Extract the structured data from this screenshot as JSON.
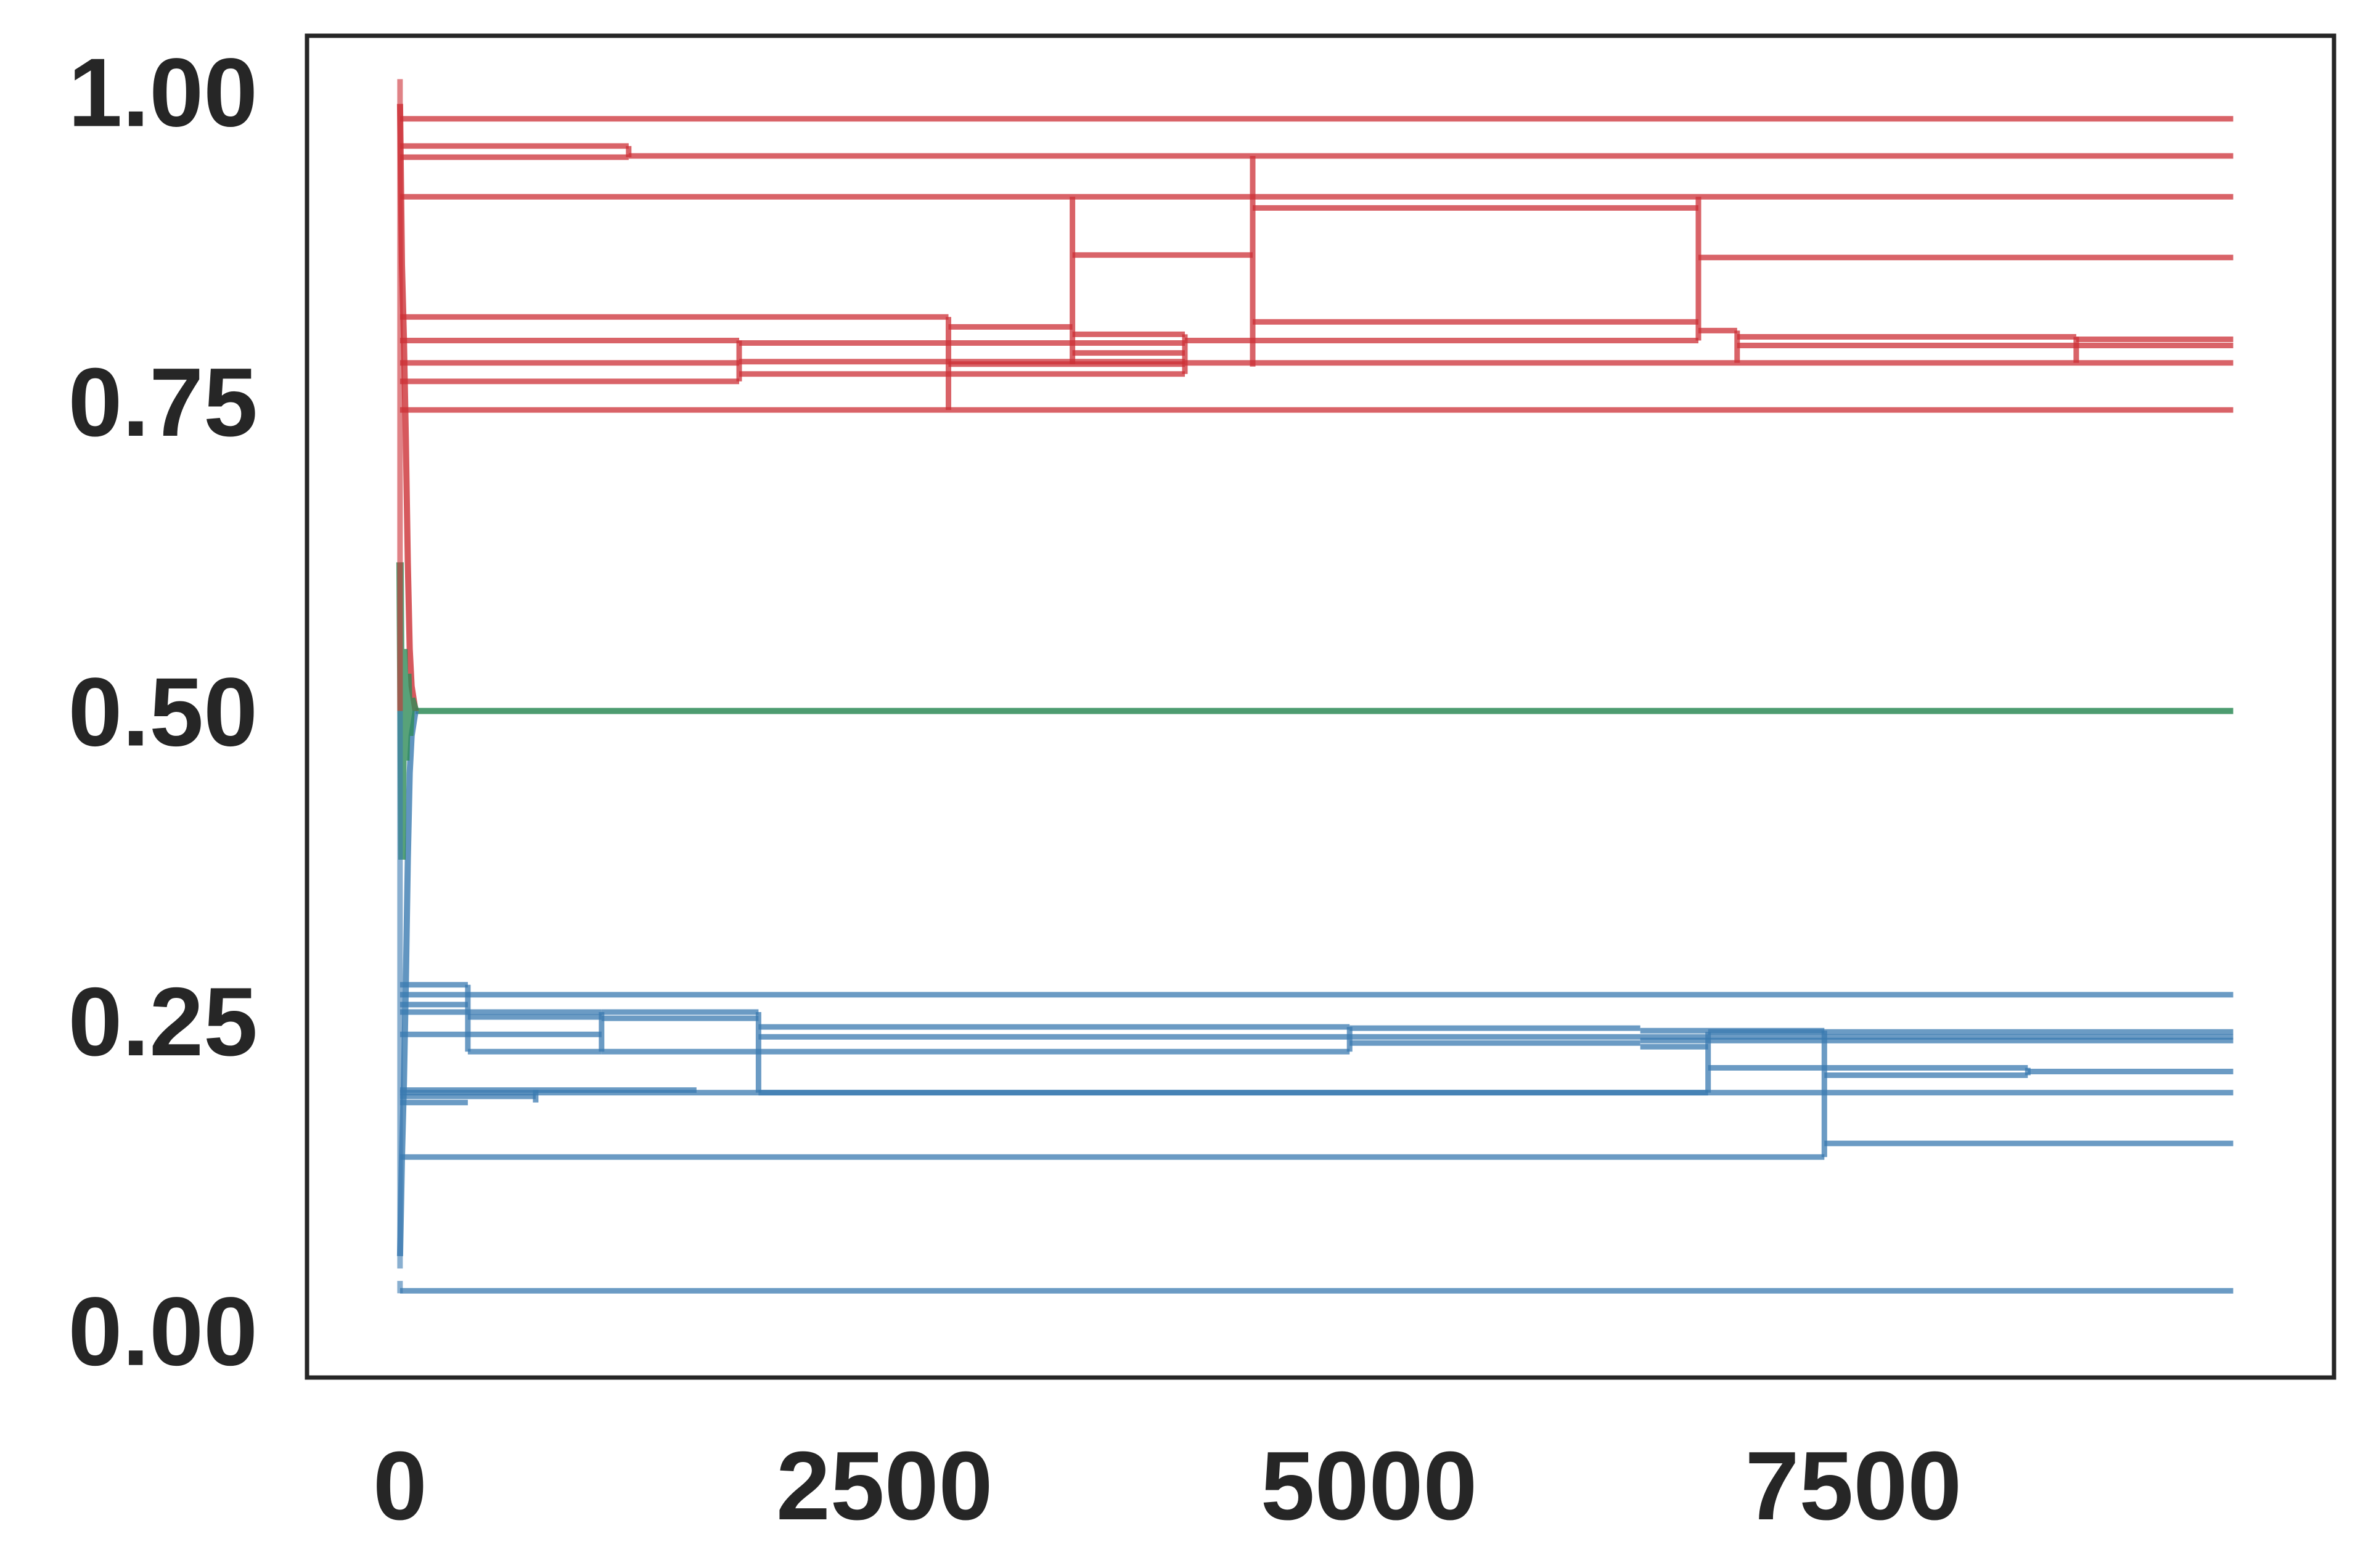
{
  "chart_data": {
    "type": "line",
    "title": "",
    "xlabel": "",
    "ylabel": "",
    "xlim": [
      -480,
      9980
    ],
    "ylim": [
      -0.038,
      1.045
    ],
    "x_ticks": [
      0,
      2500,
      5000,
      7500
    ],
    "x_tick_labels": [
      "0",
      "2500",
      "5000",
      "7500"
    ],
    "y_ticks": [
      0.0,
      0.25,
      0.5,
      0.75,
      1.0
    ],
    "y_tick_labels": [
      "0.00",
      "0.25",
      "0.50",
      "0.75",
      "1.00"
    ],
    "grid": false,
    "legend": "none",
    "colors": {
      "red": "#cc2f35",
      "blue": "#3a7ab0",
      "green": "#2e8b57",
      "frame": "#262626"
    },
    "series_groups": [
      {
        "color": "red",
        "segments": [
          {
            "x": [
              0,
              9460
            ],
            "y": [
              0.978,
              0.978
            ]
          },
          {
            "x": [
              0,
              1180
            ],
            "y": [
              0.956,
              0.956
            ]
          },
          {
            "x": [
              0,
              1180
            ],
            "y": [
              0.947,
              0.947
            ]
          },
          {
            "x": [
              1180,
              9460
            ],
            "y": [
              0.948,
              0.948
            ]
          },
          {
            "x": [
              0,
              9460
            ],
            "y": [
              0.915,
              0.915
            ]
          },
          {
            "x": [
              0,
              2830
            ],
            "y": [
              0.818,
              0.818
            ]
          },
          {
            "x": [
              2830,
              3470
            ],
            "y": [
              0.81,
              0.81
            ]
          },
          {
            "x": [
              0,
              1750
            ],
            "y": [
              0.799,
              0.799
            ]
          },
          {
            "x": [
              1750,
              4050
            ],
            "y": [
              0.797,
              0.797
            ]
          },
          {
            "x": [
              3470,
              4050
            ],
            "y": [
              0.804,
              0.804
            ]
          },
          {
            "x": [
              4050,
              6700
            ],
            "y": [
              0.799,
              0.799
            ]
          },
          {
            "x": [
              6700,
              6900
            ],
            "y": [
              0.807,
              0.807
            ]
          },
          {
            "x": [
              6900,
              8650
            ],
            "y": [
              0.802,
              0.802
            ]
          },
          {
            "x": [
              8650,
              9460
            ],
            "y": [
              0.8,
              0.8
            ]
          },
          {
            "x": [
              6900,
              9460
            ],
            "y": [
              0.795,
              0.795
            ]
          },
          {
            "x": [
              3470,
              4050
            ],
            "y": [
              0.789,
              0.789
            ]
          },
          {
            "x": [
              0,
              1750
            ],
            "y": [
              0.781,
              0.781
            ]
          },
          {
            "x": [
              1750,
              4050
            ],
            "y": [
              0.782,
              0.782
            ]
          },
          {
            "x": [
              4050,
              9460
            ],
            "y": [
              0.781,
              0.781
            ]
          },
          {
            "x": [
              2830,
              4050
            ],
            "y": [
              0.78,
              0.78
            ]
          },
          {
            "x": [
              0,
              1750
            ],
            "y": [
              0.766,
              0.766
            ]
          },
          {
            "x": [
              1750,
              4050
            ],
            "y": [
              0.772,
              0.772
            ]
          },
          {
            "x": [
              0,
              2830
            ],
            "y": [
              0.743,
              0.743
            ]
          },
          {
            "x": [
              2830,
              9460
            ],
            "y": [
              0.743,
              0.743
            ]
          },
          {
            "x": [
              3470,
              4400
            ],
            "y": [
              0.868,
              0.868
            ]
          },
          {
            "x": [
              4400,
              6700
            ],
            "y": [
              0.906,
              0.906
            ]
          },
          {
            "x": [
              4400,
              6700
            ],
            "y": [
              0.814,
              0.814
            ]
          },
          {
            "x": [
              6700,
              9460
            ],
            "y": [
              0.866,
              0.866
            ]
          },
          {
            "x": [
              1750,
              1750
            ],
            "y": [
              0.766,
              0.799
            ]
          },
          {
            "x": [
              2830,
              2830
            ],
            "y": [
              0.743,
              0.818
            ]
          },
          {
            "x": [
              3470,
              3470
            ],
            "y": [
              0.78,
              0.915
            ]
          },
          {
            "x": [
              4050,
              4050
            ],
            "y": [
              0.772,
              0.804
            ]
          },
          {
            "x": [
              4400,
              4400
            ],
            "y": [
              0.778,
              0.948
            ]
          },
          {
            "x": [
              6700,
              6700
            ],
            "y": [
              0.799,
              0.915
            ]
          },
          {
            "x": [
              6900,
              6900
            ],
            "y": [
              0.781,
              0.807
            ]
          },
          {
            "x": [
              8650,
              8650
            ],
            "y": [
              0.781,
              0.802
            ]
          },
          {
            "x": [
              1180,
              1180
            ],
            "y": [
              0.947,
              0.956
            ]
          }
        ]
      },
      {
        "color": "blue",
        "segments": [
          {
            "x": [
              0,
              9460
            ],
            "y": [
              0.271,
              0.271
            ]
          },
          {
            "x": [
              0,
              350
            ],
            "y": [
              0.279,
              0.279
            ]
          },
          {
            "x": [
              0,
              350
            ],
            "y": [
              0.263,
              0.263
            ]
          },
          {
            "x": [
              0,
              1040
            ],
            "y": [
              0.257,
              0.257
            ]
          },
          {
            "x": [
              1040,
              1850
            ],
            "y": [
              0.257,
              0.257
            ]
          },
          {
            "x": [
              350,
              1040
            ],
            "y": [
              0.225,
              0.225
            ]
          },
          {
            "x": [
              1040,
              4900
            ],
            "y": [
              0.225,
              0.225
            ]
          },
          {
            "x": [
              0,
              1040
            ],
            "y": [
              0.239,
              0.239
            ]
          },
          {
            "x": [
              350,
              1040
            ],
            "y": [
              0.253,
              0.253
            ]
          },
          {
            "x": [
              1040,
              1850
            ],
            "y": [
              0.252,
              0.252
            ]
          },
          {
            "x": [
              1850,
              4900
            ],
            "y": [
              0.245,
              0.245
            ]
          },
          {
            "x": [
              1850,
              9460
            ],
            "y": [
              0.237,
              0.237
            ]
          },
          {
            "x": [
              4900,
              6400
            ],
            "y": [
              0.244,
              0.244
            ]
          },
          {
            "x": [
              4900,
              6400
            ],
            "y": [
              0.232,
              0.232
            ]
          },
          {
            "x": [
              6400,
              7350
            ],
            "y": [
              0.242,
              0.242
            ]
          },
          {
            "x": [
              6400,
              9460
            ],
            "y": [
              0.234,
              0.234
            ]
          },
          {
            "x": [
              6400,
              6750
            ],
            "y": [
              0.229,
              0.229
            ]
          },
          {
            "x": [
              6750,
              9460
            ],
            "y": [
              0.241,
              0.241
            ]
          },
          {
            "x": [
              6750,
              8400
            ],
            "y": [
              0.212,
              0.212
            ]
          },
          {
            "x": [
              7350,
              8400
            ],
            "y": [
              0.206,
              0.206
            ]
          },
          {
            "x": [
              8400,
              9460
            ],
            "y": [
              0.209,
              0.209
            ]
          },
          {
            "x": [
              0,
              1530
            ],
            "y": [
              0.194,
              0.194
            ]
          },
          {
            "x": [
              0,
              700
            ],
            "y": [
              0.189,
              0.189
            ]
          },
          {
            "x": [
              0,
              9460
            ],
            "y": [
              0.192,
              0.192
            ]
          },
          {
            "x": [
              0,
              350
            ],
            "y": [
              0.184,
              0.184
            ]
          },
          {
            "x": [
              1850,
              6750
            ],
            "y": [
              0.192,
              0.192
            ]
          },
          {
            "x": [
              0,
              7350
            ],
            "y": [
              0.14,
              0.14
            ]
          },
          {
            "x": [
              7350,
              9460
            ],
            "y": [
              0.151,
              0.151
            ]
          },
          {
            "x": [
              0,
              9460
            ],
            "y": [
              0.032,
              0.032
            ]
          },
          {
            "x": [
              350,
              350
            ],
            "y": [
              0.225,
              0.279
            ]
          },
          {
            "x": [
              1040,
              1040
            ],
            "y": [
              0.225,
              0.257
            ]
          },
          {
            "x": [
              1850,
              1850
            ],
            "y": [
              0.192,
              0.257
            ]
          },
          {
            "x": [
              4900,
              4900
            ],
            "y": [
              0.225,
              0.245
            ]
          },
          {
            "x": [
              6750,
              6750
            ],
            "y": [
              0.192,
              0.241
            ]
          },
          {
            "x": [
              7350,
              7350
            ],
            "y": [
              0.14,
              0.242
            ]
          },
          {
            "x": [
              8400,
              8400
            ],
            "y": [
              0.206,
              0.212
            ]
          },
          {
            "x": [
              700,
              700
            ],
            "y": [
              0.184,
              0.194
            ]
          }
        ]
      },
      {
        "color": "green",
        "segments": [
          {
            "x": [
              80,
              9460
            ],
            "y": [
              0.5,
              0.5
            ]
          }
        ]
      }
    ],
    "transient": {
      "x": [
        0,
        10,
        20,
        30,
        40,
        50,
        60,
        80
      ],
      "upper_red": [
        0.99,
        0.86,
        0.8,
        0.72,
        0.62,
        0.55,
        0.52,
        0.5
      ],
      "lower_blue": [
        0.06,
        0.14,
        0.2,
        0.28,
        0.38,
        0.45,
        0.48,
        0.5
      ],
      "green_band": [
        0.62,
        0.38,
        0.55,
        0.46,
        0.53,
        0.48,
        0.51,
        0.5
      ]
    }
  }
}
